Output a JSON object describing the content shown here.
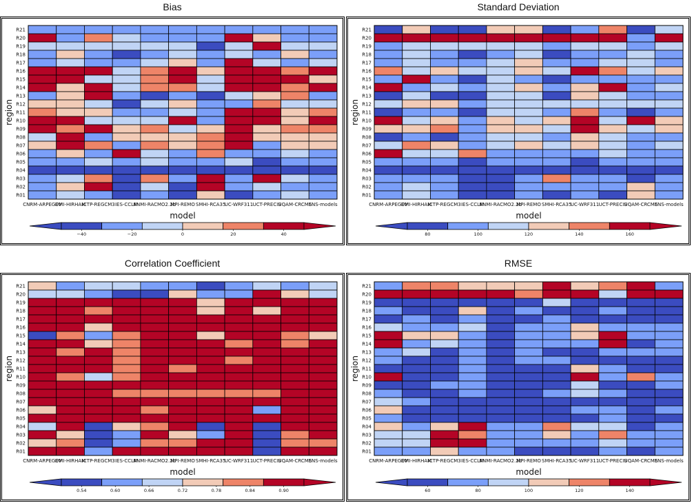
{
  "colors": {
    "palette": [
      "#3b4cc0",
      "#7b9ff9",
      "#c0d4f5",
      "#f2cbb7",
      "#ee8468",
      "#b40426"
    ],
    "cell_border": "#000000"
  },
  "chart_data": [
    {
      "type": "heatmap",
      "title": "Bias",
      "xlabel": "model",
      "ylabel": "region",
      "x_categories": [
        "CNRM-ARPEGEV",
        "DMI-HIRHAM",
        "ICTP-REGCM3",
        "IES-CCLM",
        "KNMI-RACMO2.2b",
        "MPI-REMO",
        "SMHI-RCA35",
        "UC-WRF311",
        "UCT-PRECIS",
        "UQAM-CRCM5",
        "ENS-models"
      ],
      "y_categories": [
        "R21",
        "R20",
        "R19",
        "R18",
        "R17",
        "R16",
        "R15",
        "R14",
        "R13",
        "R12",
        "R11",
        "R10",
        "R09",
        "R08",
        "R07",
        "R06",
        "R05",
        "R04",
        "R03",
        "R02",
        "R01"
      ],
      "color_levels": [
        [
          1,
          1,
          1,
          1,
          1,
          1,
          1,
          1,
          1,
          1,
          1
        ],
        [
          5,
          1,
          4,
          2,
          1,
          1,
          1,
          5,
          3,
          1,
          1
        ],
        [
          2,
          2,
          2,
          2,
          2,
          2,
          0,
          2,
          5,
          2,
          2
        ],
        [
          1,
          3,
          1,
          0,
          1,
          2,
          1,
          2,
          1,
          3,
          1
        ],
        [
          1,
          2,
          1,
          1,
          2,
          3,
          1,
          5,
          2,
          1,
          2
        ],
        [
          5,
          5,
          5,
          2,
          4,
          5,
          3,
          5,
          5,
          4,
          5
        ],
        [
          5,
          5,
          2,
          2,
          4,
          5,
          2,
          5,
          5,
          5,
          3
        ],
        [
          5,
          3,
          5,
          2,
          4,
          4,
          2,
          5,
          5,
          4,
          5
        ],
        [
          1,
          3,
          5,
          1,
          0,
          1,
          0,
          2,
          3,
          4,
          1
        ],
        [
          3,
          3,
          2,
          0,
          2,
          3,
          1,
          1,
          4,
          2,
          2
        ],
        [
          4,
          3,
          3,
          1,
          1,
          2,
          1,
          5,
          5,
          3,
          4
        ],
        [
          5,
          5,
          2,
          2,
          2,
          5,
          1,
          5,
          5,
          3,
          5
        ],
        [
          5,
          4,
          5,
          3,
          4,
          2,
          3,
          5,
          3,
          4,
          4
        ],
        [
          2,
          5,
          1,
          3,
          3,
          3,
          4,
          5,
          3,
          3,
          3
        ],
        [
          3,
          5,
          4,
          1,
          4,
          3,
          4,
          5,
          1,
          3,
          3
        ],
        [
          1,
          3,
          1,
          5,
          2,
          1,
          4,
          1,
          1,
          2,
          1
        ],
        [
          1,
          1,
          2,
          1,
          2,
          1,
          1,
          2,
          0,
          1,
          1
        ],
        [
          0,
          0,
          0,
          0,
          0,
          0,
          0,
          0,
          0,
          0,
          0
        ],
        [
          1,
          2,
          4,
          0,
          4,
          1,
          5,
          1,
          5,
          2,
          1
        ],
        [
          1,
          3,
          5,
          0,
          2,
          0,
          5,
          1,
          2,
          1,
          1
        ],
        [
          1,
          2,
          1,
          0,
          1,
          0,
          3,
          0,
          1,
          2,
          1
        ]
      ],
      "colorbar_ticks": [
        "−40",
        "−20",
        "0",
        "20",
        "40"
      ]
    },
    {
      "type": "heatmap",
      "title": "Standard Deviation",
      "xlabel": "model",
      "ylabel": "region",
      "x_categories": [
        "CNRM-ARPEGEV",
        "DMI-HIRHAM",
        "ICTP-REGCM3",
        "IES-CCLM",
        "KNMI-RACMO2.2b",
        "MPI-REMO",
        "SMHI-RCA35",
        "UC-WRF311",
        "UCT-PRECIS",
        "UQAM-CRCM5",
        "ENS-models"
      ],
      "y_categories": [
        "R21",
        "R20",
        "R19",
        "R18",
        "R17",
        "R16",
        "R15",
        "R14",
        "R13",
        "R12",
        "R11",
        "R10",
        "R09",
        "R08",
        "R07",
        "R06",
        "R05",
        "R04",
        "R03",
        "R02",
        "R01"
      ],
      "color_levels": [
        [
          0,
          3,
          0,
          0,
          3,
          3,
          0,
          1,
          4,
          0,
          2
        ],
        [
          5,
          5,
          5,
          5,
          5,
          5,
          5,
          5,
          5,
          1,
          5
        ],
        [
          1,
          2,
          2,
          2,
          2,
          2,
          1,
          2,
          2,
          1,
          2
        ],
        [
          1,
          2,
          1,
          0,
          1,
          2,
          0,
          1,
          1,
          2,
          1
        ],
        [
          1,
          2,
          1,
          1,
          2,
          3,
          1,
          1,
          2,
          2,
          1
        ],
        [
          4,
          2,
          3,
          2,
          2,
          3,
          2,
          5,
          4,
          2,
          3
        ],
        [
          1,
          5,
          1,
          0,
          2,
          1,
          0,
          1,
          1,
          1,
          1
        ],
        [
          5,
          1,
          2,
          1,
          2,
          3,
          1,
          3,
          5,
          1,
          2
        ],
        [
          0,
          2,
          0,
          0,
          2,
          2,
          0,
          3,
          2,
          1,
          1
        ],
        [
          2,
          3,
          3,
          1,
          2,
          2,
          2,
          2,
          2,
          2,
          2
        ],
        [
          0,
          1,
          1,
          0,
          2,
          2,
          1,
          4,
          1,
          0,
          1
        ],
        [
          5,
          2,
          3,
          1,
          3,
          2,
          3,
          5,
          2,
          5,
          3
        ],
        [
          3,
          3,
          4,
          1,
          3,
          3,
          2,
          5,
          3,
          2,
          3
        ],
        [
          0,
          1,
          0,
          1,
          2,
          2,
          1,
          3,
          2,
          1,
          1
        ],
        [
          2,
          4,
          3,
          1,
          2,
          3,
          2,
          3,
          2,
          1,
          2
        ],
        [
          5,
          2,
          2,
          4,
          1,
          1,
          1,
          1,
          2,
          1,
          1
        ],
        [
          1,
          1,
          1,
          0,
          1,
          1,
          1,
          0,
          1,
          1,
          1
        ],
        [
          0,
          0,
          0,
          0,
          0,
          0,
          0,
          0,
          0,
          0,
          0
        ],
        [
          1,
          1,
          1,
          0,
          0,
          1,
          4,
          1,
          1,
          0,
          1
        ],
        [
          1,
          2,
          1,
          0,
          0,
          1,
          1,
          1,
          1,
          3,
          1
        ],
        [
          1,
          2,
          1,
          0,
          0,
          1,
          0,
          1,
          0,
          3,
          1
        ]
      ],
      "colorbar_ticks": [
        "80",
        "100",
        "120",
        "140",
        "160"
      ]
    },
    {
      "type": "heatmap",
      "title": "Correlation Coefficient",
      "xlabel": "model",
      "ylabel": "region",
      "x_categories": [
        "CNRM-ARPEGEV",
        "DMI-HIRHAM",
        "ICTP-REGCM3",
        "IES-CCLM",
        "KNMI-RACMO2.2b",
        "MPI-REMO",
        "SMHI-RCA35",
        "UC-WRF311",
        "UCT-PRECIS",
        "UQAM-CRCM5",
        "ENS-models"
      ],
      "y_categories": [
        "R21",
        "R20",
        "R19",
        "R18",
        "R17",
        "R16",
        "R15",
        "R14",
        "R13",
        "R12",
        "R11",
        "R10",
        "R09",
        "R08",
        "R07",
        "R06",
        "R05",
        "R04",
        "R03",
        "R02",
        "R01"
      ],
      "color_levels": [
        [
          3,
          1,
          2,
          2,
          1,
          1,
          0,
          1,
          2,
          1,
          2
        ],
        [
          2,
          2,
          1,
          0,
          0,
          3,
          1,
          1,
          5,
          3,
          2
        ],
        [
          5,
          5,
          5,
          5,
          5,
          5,
          3,
          5,
          5,
          5,
          5
        ],
        [
          5,
          5,
          4,
          5,
          5,
          5,
          3,
          5,
          3,
          5,
          5
        ],
        [
          5,
          5,
          5,
          5,
          5,
          5,
          5,
          5,
          5,
          5,
          5
        ],
        [
          5,
          5,
          3,
          5,
          5,
          5,
          5,
          5,
          5,
          5,
          5
        ],
        [
          0,
          4,
          1,
          4,
          5,
          5,
          3,
          5,
          5,
          4,
          3
        ],
        [
          5,
          5,
          3,
          4,
          5,
          5,
          5,
          4,
          5,
          4,
          5
        ],
        [
          5,
          4,
          5,
          4,
          5,
          5,
          5,
          5,
          5,
          5,
          5
        ],
        [
          5,
          5,
          5,
          4,
          5,
          5,
          5,
          4,
          5,
          5,
          5
        ],
        [
          5,
          5,
          5,
          4,
          5,
          4,
          5,
          5,
          5,
          5,
          5
        ],
        [
          5,
          4,
          2,
          4,
          5,
          5,
          5,
          5,
          5,
          5,
          5
        ],
        [
          5,
          5,
          5,
          5,
          5,
          5,
          5,
          5,
          5,
          5,
          5
        ],
        [
          5,
          5,
          5,
          4,
          4,
          4,
          4,
          4,
          4,
          5,
          5
        ],
        [
          5,
          5,
          5,
          5,
          5,
          5,
          5,
          5,
          5,
          5,
          5
        ],
        [
          3,
          5,
          5,
          5,
          4,
          5,
          5,
          5,
          1,
          5,
          5
        ],
        [
          5,
          5,
          5,
          5,
          5,
          5,
          5,
          5,
          5,
          5,
          5
        ],
        [
          2,
          5,
          0,
          3,
          4,
          5,
          0,
          5,
          0,
          5,
          5
        ],
        [
          5,
          3,
          0,
          1,
          5,
          3,
          1,
          5,
          0,
          4,
          5
        ],
        [
          3,
          4,
          0,
          1,
          4,
          4,
          5,
          5,
          0,
          4,
          4
        ],
        [
          5,
          5,
          1,
          5,
          5,
          5,
          5,
          5,
          0,
          5,
          5
        ]
      ],
      "colorbar_ticks": [
        "0.54",
        "0.60",
        "0.66",
        "0.72",
        "0.78",
        "0.84",
        "0.90"
      ]
    },
    {
      "type": "heatmap",
      "title": "RMSE",
      "xlabel": "model",
      "ylabel": "region",
      "x_categories": [
        "CNRM-ARPEGEV",
        "DMI-HIRHAM",
        "ICTP-REGCM3",
        "IES-CCLM",
        "KNMI-RACMO2.2b",
        "MPI-REMO",
        "SMHI-RCA35",
        "UC-WRF311",
        "UCT-PRECIS",
        "UQAM-CRCM5",
        "ENS-models"
      ],
      "y_categories": [
        "R21",
        "R20",
        "R19",
        "R18",
        "R17",
        "R16",
        "R15",
        "R14",
        "R13",
        "R12",
        "R11",
        "R10",
        "R09",
        "R08",
        "R07",
        "R06",
        "R05",
        "R04",
        "R03",
        "R02",
        "R01"
      ],
      "color_levels": [
        [
          1,
          4,
          4,
          3,
          3,
          3,
          5,
          3,
          4,
          5,
          1
        ],
        [
          5,
          5,
          5,
          5,
          5,
          4,
          5,
          5,
          2,
          5,
          5
        ],
        [
          0,
          0,
          0,
          0,
          0,
          0,
          2,
          0,
          0,
          0,
          0
        ],
        [
          1,
          0,
          0,
          3,
          0,
          1,
          0,
          0,
          1,
          0,
          0
        ],
        [
          0,
          1,
          0,
          1,
          0,
          0,
          1,
          0,
          0,
          0,
          0
        ],
        [
          2,
          1,
          1,
          2,
          0,
          1,
          1,
          3,
          1,
          1,
          1
        ],
        [
          5,
          3,
          3,
          1,
          0,
          1,
          1,
          3,
          5,
          1,
          1
        ],
        [
          5,
          1,
          2,
          1,
          0,
          1,
          1,
          1,
          5,
          0,
          1
        ],
        [
          1,
          2,
          0,
          1,
          0,
          1,
          0,
          0,
          1,
          1,
          1
        ],
        [
          1,
          0,
          0,
          1,
          0,
          1,
          1,
          0,
          0,
          0,
          0
        ],
        [
          0,
          0,
          0,
          1,
          0,
          0,
          0,
          3,
          1,
          0,
          0
        ],
        [
          5,
          0,
          0,
          1,
          0,
          0,
          0,
          5,
          1,
          4,
          1
        ],
        [
          0,
          0,
          1,
          1,
          0,
          0,
          0,
          2,
          0,
          0,
          1
        ],
        [
          1,
          0,
          0,
          1,
          0,
          0,
          1,
          2,
          1,
          0,
          0
        ],
        [
          2,
          1,
          0,
          0,
          0,
          0,
          0,
          0,
          0,
          0,
          0
        ],
        [
          3,
          0,
          0,
          0,
          0,
          0,
          0,
          1,
          1,
          0,
          1
        ],
        [
          1,
          0,
          0,
          0,
          0,
          0,
          0,
          0,
          1,
          0,
          0
        ],
        [
          3,
          1,
          3,
          5,
          1,
          1,
          4,
          2,
          2,
          0,
          1
        ],
        [
          2,
          2,
          5,
          4,
          1,
          1,
          3,
          1,
          4,
          1,
          1
        ],
        [
          2,
          2,
          5,
          5,
          1,
          1,
          1,
          1,
          2,
          1,
          1
        ],
        [
          1,
          1,
          3,
          1,
          1,
          0,
          0,
          0,
          1,
          0,
          1
        ]
      ],
      "colorbar_ticks": [
        "60",
        "80",
        "100",
        "120",
        "140"
      ]
    }
  ]
}
